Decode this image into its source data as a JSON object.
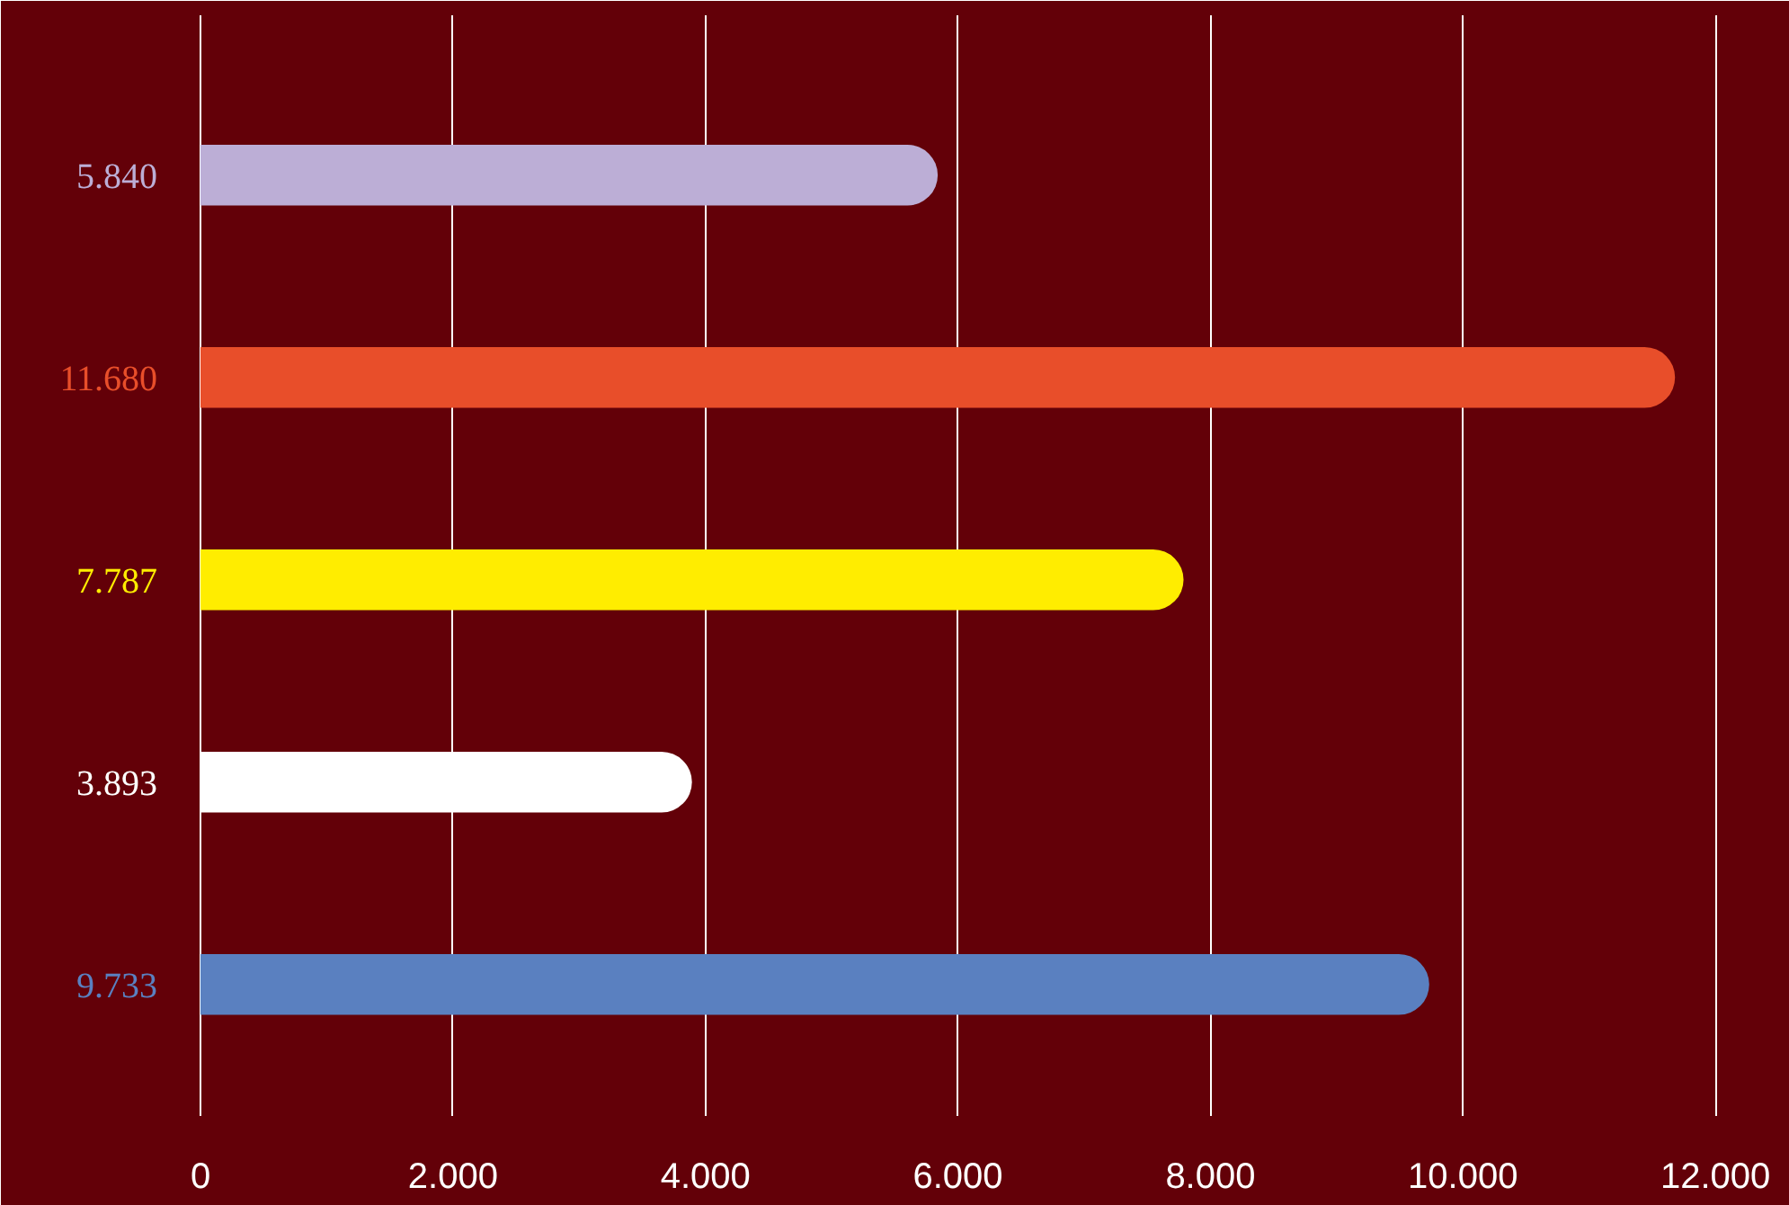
{
  "chart_data": {
    "type": "bar",
    "orientation": "horizontal",
    "categories": [
      null,
      null,
      null,
      null,
      null
    ],
    "values": [
      5840,
      11680,
      7787,
      3893,
      9733
    ],
    "colors": [
      "#bcaed6",
      "#e84e2a",
      "#ffed00",
      "#ffffff",
      "#5a80c0"
    ],
    "value_labels": [
      "5.840",
      "11.680",
      "7.787",
      "3.893",
      "9.733"
    ],
    "xlim": [
      0,
      12590
    ],
    "xticks": [
      {
        "value": 0,
        "label": "0"
      },
      {
        "value": 2000,
        "label": "2.000"
      },
      {
        "value": 4000,
        "label": "4.000"
      },
      {
        "value": 6000,
        "label": "6.000"
      },
      {
        "value": 8000,
        "label": "8.000"
      },
      {
        "value": 10000,
        "label": "10.000"
      },
      {
        "value": 12000,
        "label": "12.000"
      }
    ],
    "grid": "x"
  }
}
